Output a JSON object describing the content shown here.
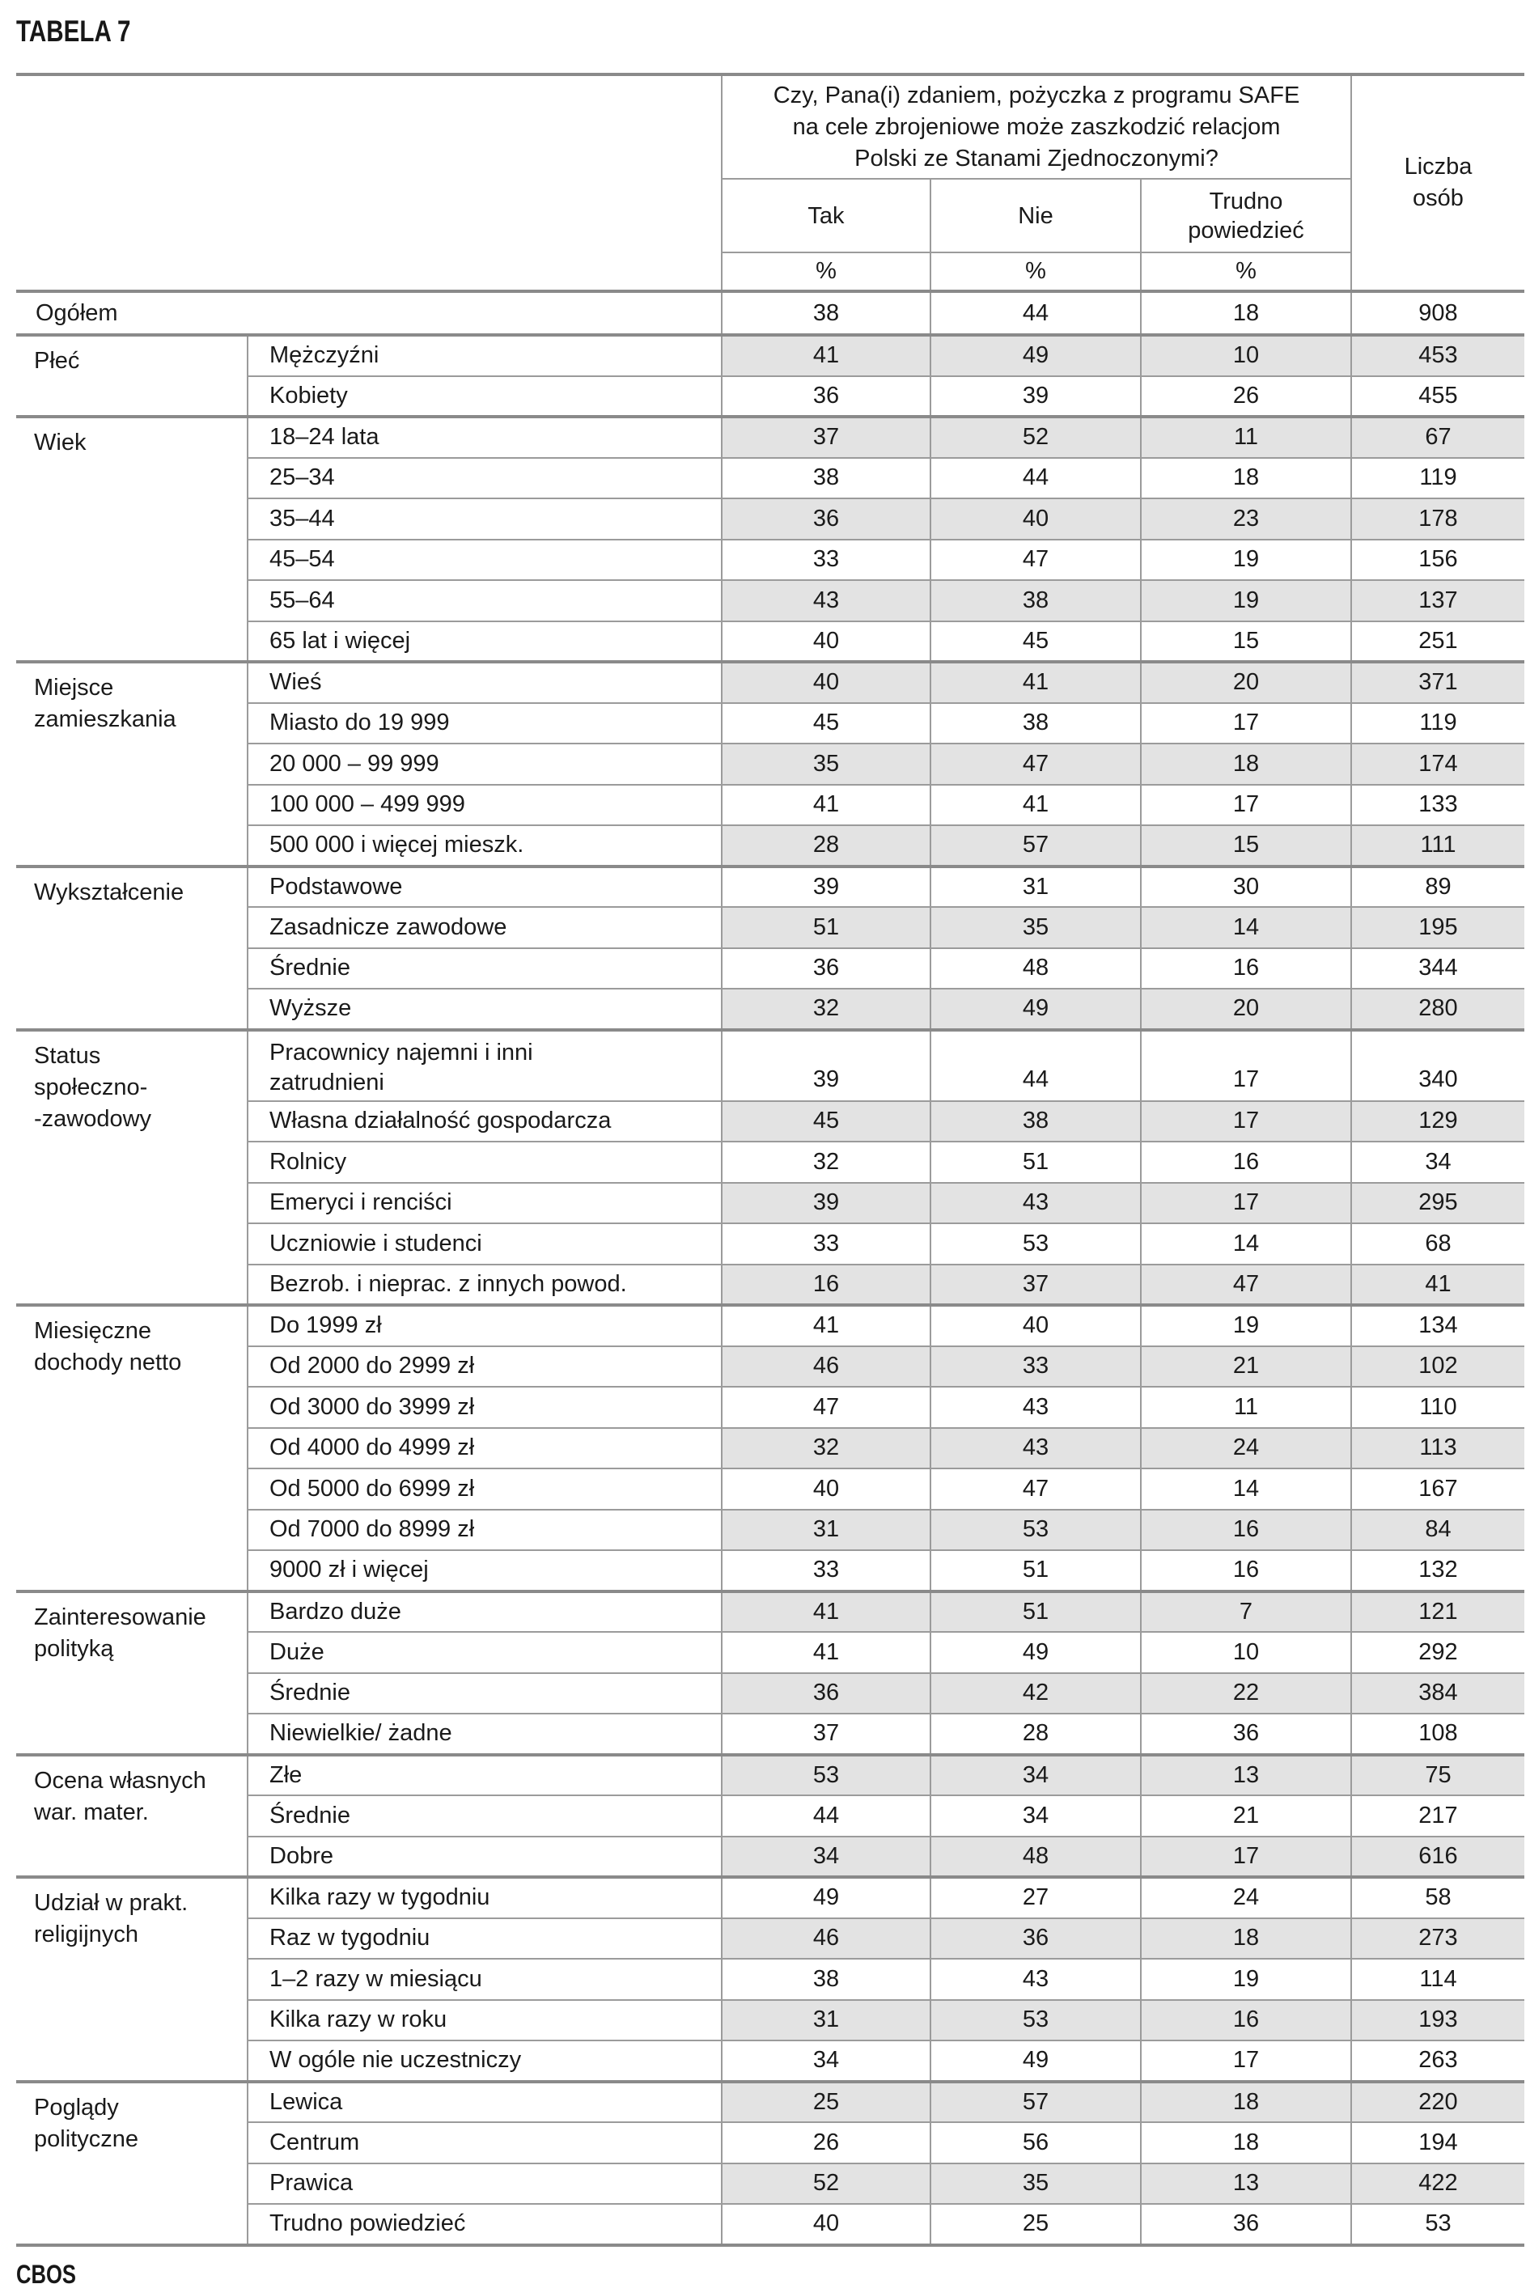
{
  "page": {
    "title": "TABELA 7",
    "footer": "CBOS"
  },
  "table": {
    "question": "Czy, Pana(i) zdaniem, pożyczka z programu SAFE\nna cele zbrojeniowe może zaszkodzić relacjom\nPolski ze Stanami Zjednoczonymi?",
    "answers": [
      "Tak",
      "Nie",
      "Trudno\npowiedzieć"
    ],
    "percent_symbol": "%",
    "count_header": "Liczba\nosób",
    "colors": {
      "shade": "#e3e3e3",
      "thin_border": "#9b9b9b",
      "thick_border": "#8a8a8a",
      "text": "#1a1a1a"
    },
    "overall": {
      "label": "Ogółem",
      "values": [
        38,
        44,
        18,
        908
      ],
      "shaded": false
    },
    "groups": [
      {
        "label": "Płeć",
        "rows": [
          {
            "label": "Mężczyźni",
            "values": [
              41,
              49,
              10,
              453
            ],
            "shaded": true
          },
          {
            "label": "Kobiety",
            "values": [
              36,
              39,
              26,
              455
            ],
            "shaded": false
          }
        ]
      },
      {
        "label": "Wiek",
        "rows": [
          {
            "label": "18–24 lata",
            "values": [
              37,
              52,
              11,
              67
            ],
            "shaded": true
          },
          {
            "label": "25–34",
            "values": [
              38,
              44,
              18,
              119
            ],
            "shaded": false
          },
          {
            "label": "35–44",
            "values": [
              36,
              40,
              23,
              178
            ],
            "shaded": true
          },
          {
            "label": "45–54",
            "values": [
              33,
              47,
              19,
              156
            ],
            "shaded": false
          },
          {
            "label": "55–64",
            "values": [
              43,
              38,
              19,
              137
            ],
            "shaded": true
          },
          {
            "label": "65 lat i więcej",
            "values": [
              40,
              45,
              15,
              251
            ],
            "shaded": false
          }
        ]
      },
      {
        "label": "Miejsce\nzamieszkania",
        "rows": [
          {
            "label": "Wieś",
            "values": [
              40,
              41,
              20,
              371
            ],
            "shaded": true
          },
          {
            "label": "Miasto do 19 999",
            "values": [
              45,
              38,
              17,
              119
            ],
            "shaded": false
          },
          {
            "label": "20 000 – 99 999",
            "values": [
              35,
              47,
              18,
              174
            ],
            "shaded": true
          },
          {
            "label": "100 000 – 499 999",
            "values": [
              41,
              41,
              17,
              133
            ],
            "shaded": false
          },
          {
            "label": "500 000 i więcej mieszk.",
            "values": [
              28,
              57,
              15,
              111
            ],
            "shaded": true
          }
        ]
      },
      {
        "label": "Wykształcenie",
        "rows": [
          {
            "label": "Podstawowe",
            "values": [
              39,
              31,
              30,
              89
            ],
            "shaded": false
          },
          {
            "label": "Zasadnicze zawodowe",
            "values": [
              51,
              35,
              14,
              195
            ],
            "shaded": true
          },
          {
            "label": "Średnie",
            "values": [
              36,
              48,
              16,
              344
            ],
            "shaded": false
          },
          {
            "label": "Wyższe",
            "values": [
              32,
              49,
              20,
              280
            ],
            "shaded": true
          }
        ]
      },
      {
        "label": "Status\nspołeczno-\n-zawodowy",
        "rows": [
          {
            "label": "Pracownicy najemni i inni\nzatrudnieni",
            "values": [
              39,
              44,
              17,
              340
            ],
            "shaded": false
          },
          {
            "label": "Własna działalność gospodarcza",
            "values": [
              45,
              38,
              17,
              129
            ],
            "shaded": true
          },
          {
            "label": "Rolnicy",
            "values": [
              32,
              51,
              16,
              34
            ],
            "shaded": false
          },
          {
            "label": "Emeryci i renciści",
            "values": [
              39,
              43,
              17,
              295
            ],
            "shaded": true
          },
          {
            "label": "Uczniowie i studenci",
            "values": [
              33,
              53,
              14,
              68
            ],
            "shaded": false
          },
          {
            "label": "Bezrob. i nieprac. z innych powod.",
            "values": [
              16,
              37,
              47,
              41
            ],
            "shaded": true
          }
        ]
      },
      {
        "label": "Miesięczne\ndochody netto",
        "rows": [
          {
            "label": "Do 1999 zł",
            "values": [
              41,
              40,
              19,
              134
            ],
            "shaded": false
          },
          {
            "label": "Od 2000 do 2999 zł",
            "values": [
              46,
              33,
              21,
              102
            ],
            "shaded": true
          },
          {
            "label": "Od 3000 do 3999 zł",
            "values": [
              47,
              43,
              11,
              110
            ],
            "shaded": false
          },
          {
            "label": "Od 4000 do 4999 zł",
            "values": [
              32,
              43,
              24,
              113
            ],
            "shaded": true
          },
          {
            "label": "Od 5000 do 6999 zł",
            "values": [
              40,
              47,
              14,
              167
            ],
            "shaded": false
          },
          {
            "label": "Od 7000 do 8999 zł",
            "values": [
              31,
              53,
              16,
              84
            ],
            "shaded": true
          },
          {
            "label": "9000 zł i więcej",
            "values": [
              33,
              51,
              16,
              132
            ],
            "shaded": false
          }
        ]
      },
      {
        "label": "Zainteresowanie\npolityką",
        "rows": [
          {
            "label": "Bardzo duże",
            "values": [
              41,
              51,
              7,
              121
            ],
            "shaded": true
          },
          {
            "label": "Duże",
            "values": [
              41,
              49,
              10,
              292
            ],
            "shaded": false
          },
          {
            "label": "Średnie",
            "values": [
              36,
              42,
              22,
              384
            ],
            "shaded": true
          },
          {
            "label": "Niewielkie/ żadne",
            "values": [
              37,
              28,
              36,
              108
            ],
            "shaded": false
          }
        ]
      },
      {
        "label": "Ocena własnych\nwar. mater.",
        "rows": [
          {
            "label": "Złe",
            "values": [
              53,
              34,
              13,
              75
            ],
            "shaded": true
          },
          {
            "label": "Średnie",
            "values": [
              44,
              34,
              21,
              217
            ],
            "shaded": false
          },
          {
            "label": "Dobre",
            "values": [
              34,
              48,
              17,
              616
            ],
            "shaded": true
          }
        ]
      },
      {
        "label": "Udział w prakt.\nreligijnych",
        "rows": [
          {
            "label": "Kilka razy w tygodniu",
            "values": [
              49,
              27,
              24,
              58
            ],
            "shaded": false
          },
          {
            "label": "Raz w tygodniu",
            "values": [
              46,
              36,
              18,
              273
            ],
            "shaded": true
          },
          {
            "label": "1–2 razy w miesiącu",
            "values": [
              38,
              43,
              19,
              114
            ],
            "shaded": false
          },
          {
            "label": "Kilka razy w roku",
            "values": [
              31,
              53,
              16,
              193
            ],
            "shaded": true
          },
          {
            "label": "W ogóle nie uczestniczy",
            "values": [
              34,
              49,
              17,
              263
            ],
            "shaded": false
          }
        ]
      },
      {
        "label": "Poglądy\npolityczne",
        "rows": [
          {
            "label": "Lewica",
            "values": [
              25,
              57,
              18,
              220
            ],
            "shaded": true
          },
          {
            "label": "Centrum",
            "values": [
              26,
              56,
              18,
              194
            ],
            "shaded": false
          },
          {
            "label": "Prawica",
            "values": [
              52,
              35,
              13,
              422
            ],
            "shaded": true
          },
          {
            "label": "Trudno powiedzieć",
            "values": [
              40,
              25,
              36,
              53
            ],
            "shaded": false
          }
        ]
      }
    ]
  }
}
